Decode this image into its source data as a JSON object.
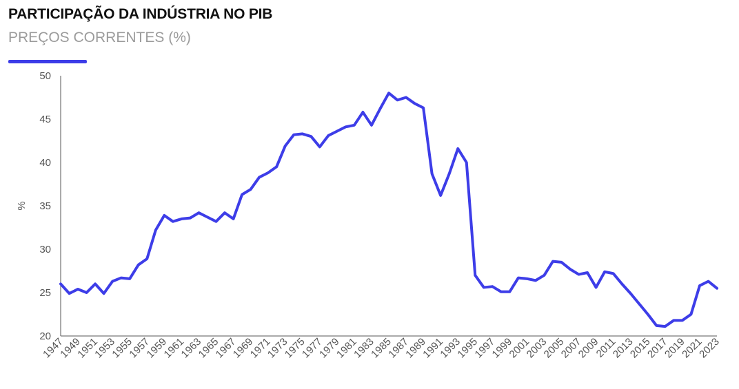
{
  "header": {
    "title": "PARTICIPAÇÃO DA INDÚSTRIA NO PIB",
    "subtitle": "PREÇOS CORRENTES (%)"
  },
  "colors": {
    "line": "#3d3de8",
    "accent": "#3d3de8",
    "axis": "#555555"
  },
  "chart_data": {
    "type": "line",
    "title": "PARTICIPAÇÃO DA INDÚSTRIA NO PIB",
    "subtitle": "PREÇOS CORRENTES (%)",
    "xlabel": "",
    "ylabel": "%",
    "ylim": [
      20,
      50
    ],
    "yticks": [
      20,
      25,
      30,
      35,
      40,
      45,
      50
    ],
    "xticks": [
      1947,
      1949,
      1951,
      1953,
      1955,
      1957,
      1959,
      1961,
      1963,
      1965,
      1967,
      1969,
      1971,
      1973,
      1975,
      1977,
      1979,
      1981,
      1983,
      1985,
      1987,
      1989,
      1991,
      1993,
      1995,
      1997,
      1999,
      2001,
      2003,
      2005,
      2007,
      2009,
      2011,
      2013,
      2015,
      2017,
      2019,
      2021,
      2023
    ],
    "grid": false,
    "legend": "none",
    "x": [
      1947,
      1948,
      1949,
      1950,
      1951,
      1952,
      1953,
      1954,
      1955,
      1956,
      1957,
      1958,
      1959,
      1960,
      1961,
      1962,
      1963,
      1964,
      1965,
      1966,
      1967,
      1968,
      1969,
      1970,
      1971,
      1972,
      1973,
      1974,
      1975,
      1976,
      1977,
      1978,
      1979,
      1980,
      1981,
      1982,
      1983,
      1984,
      1985,
      1986,
      1987,
      1988,
      1989,
      1990,
      1991,
      1992,
      1993,
      1994,
      1995,
      1996,
      1997,
      1998,
      1999,
      2000,
      2001,
      2002,
      2003,
      2004,
      2005,
      2006,
      2007,
      2008,
      2009,
      2010,
      2011,
      2012,
      2013,
      2014,
      2015,
      2016,
      2017,
      2018,
      2019,
      2020,
      2021,
      2022,
      2023
    ],
    "series": [
      {
        "values": [
          26.0,
          24.9,
          25.4,
          25.0,
          26.0,
          24.9,
          26.3,
          26.7,
          26.6,
          28.2,
          28.9,
          32.2,
          33.9,
          33.2,
          33.5,
          33.6,
          34.2,
          33.7,
          33.2,
          34.2,
          33.5,
          36.3,
          36.9,
          38.3,
          38.8,
          39.5,
          41.9,
          43.2,
          43.3,
          43.0,
          41.8,
          43.1,
          43.6,
          44.1,
          44.3,
          45.8,
          44.3,
          46.2,
          48.0,
          47.2,
          47.5,
          46.8,
          46.3,
          38.7,
          36.2,
          38.7,
          41.6,
          40.0,
          27.0,
          25.6,
          25.7,
          25.1,
          25.1,
          26.7,
          26.6,
          26.4,
          27.0,
          28.6,
          28.5,
          27.7,
          27.1,
          27.3,
          25.6,
          27.4,
          27.2,
          26.0,
          24.9,
          23.7,
          22.5,
          21.2,
          21.1,
          21.8,
          21.8,
          22.5,
          25.8,
          26.3,
          25.5
        ]
      }
    ]
  }
}
